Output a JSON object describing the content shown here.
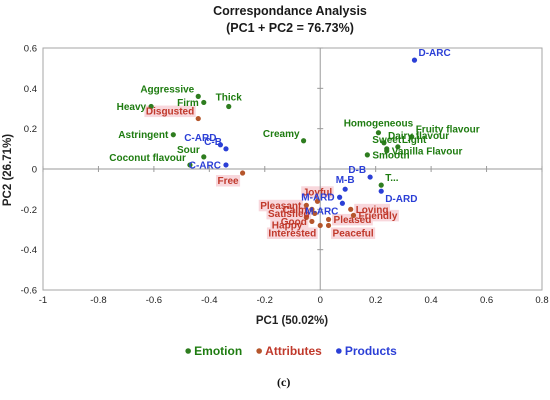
{
  "chart_data": {
    "type": "scatter",
    "title": "Correspondance Analysis",
    "subtitle": "(PC1 + PC2 = 76.73%)",
    "xlabel": "PC1 (50.02%)",
    "ylabel": "PC2 (26.71%)",
    "xlim": [
      -1,
      0.8
    ],
    "ylim": [
      -0.6,
      0.6
    ],
    "x_ticks": [
      -1,
      -0.8,
      -0.6,
      -0.4,
      -0.2,
      0,
      0.2,
      0.4,
      0.6,
      0.8
    ],
    "x_tick_labels": [
      "-1",
      "-0.8",
      "-0.6",
      "-0.4",
      "-0.2",
      "0",
      "0.2",
      "0.4",
      "0.6",
      "0.8"
    ],
    "y_ticks": [
      -0.6,
      -0.4,
      -0.2,
      0,
      0.2,
      0.4,
      0.6
    ],
    "y_tick_labels": [
      "-0.6",
      "-0.4",
      "-0.2",
      "0",
      "0.2",
      "0.4",
      "0.6"
    ],
    "grid": false,
    "legend_position": "bottom",
    "panel_label": "(c)",
    "colors": {
      "emotion": "#2e7d1f",
      "emotion_text": "#1e7c10",
      "attributes": "#b5562c",
      "attributes_text": "#c0392b",
      "products": "#2b3fd6",
      "highlight": "#f8d7dc",
      "axis": "#a6a6a6",
      "zero_line": "#9a9a9a"
    },
    "series": [
      {
        "name": "Emotion",
        "color": "#2e7d1f",
        "label_color": "#1e7c10",
        "points": [
          {
            "label": "Aggressive",
            "x": -0.44,
            "y": 0.36,
            "label_pos": "left-above"
          },
          {
            "label": "Firm",
            "x": -0.42,
            "y": 0.33,
            "label_pos": "left"
          },
          {
            "label": "Thick",
            "x": -0.33,
            "y": 0.31,
            "label_pos": "above"
          },
          {
            "label": "Heavy",
            "x": -0.61,
            "y": 0.31,
            "label_pos": "left"
          },
          {
            "label": "Astringent",
            "x": -0.53,
            "y": 0.17,
            "label_pos": "left"
          },
          {
            "label": "Creamy",
            "x": -0.06,
            "y": 0.14,
            "label_pos": "left-above"
          },
          {
            "label": "Sour",
            "x": -0.42,
            "y": 0.06,
            "label_pos": "left-above"
          },
          {
            "label": "Coconut flavour",
            "x": -0.47,
            "y": 0.02,
            "label_pos": "left-above"
          },
          {
            "label": "Homogeneous",
            "x": 0.21,
            "y": 0.18,
            "label_pos": "above"
          },
          {
            "label": "Fruity flavour",
            "x": 0.33,
            "y": 0.16,
            "label_pos": "right-above"
          },
          {
            "label": "Dairy flavour",
            "x": 0.23,
            "y": 0.13,
            "label_pos": "right-above"
          },
          {
            "label": "Sweet",
            "x": 0.24,
            "y": 0.1,
            "label_pos": "above"
          },
          {
            "label": "Light",
            "x": 0.28,
            "y": 0.11,
            "label_pos": "right-above"
          },
          {
            "label": "Vanilla Flavour",
            "x": 0.24,
            "y": 0.09,
            "label_pos": "right"
          },
          {
            "label": "Smooth",
            "x": 0.17,
            "y": 0.07,
            "label_pos": "right"
          },
          {
            "label": "T...",
            "x": 0.22,
            "y": -0.08,
            "label_pos": "right-above"
          }
        ]
      },
      {
        "name": "Attributes",
        "color": "#b5562c",
        "label_color": "#c0392b",
        "points": [
          {
            "label": "Disgusted",
            "x": -0.44,
            "y": 0.25,
            "label_pos": "left-above"
          },
          {
            "label": "Free",
            "x": -0.28,
            "y": -0.02,
            "label_pos": "left-below"
          },
          {
            "label": "Joyful",
            "x": -0.01,
            "y": -0.16,
            "label_pos": "above"
          },
          {
            "label": "Pleasant",
            "x": -0.05,
            "y": -0.18,
            "label_pos": "left"
          },
          {
            "label": "Calm",
            "x": -0.03,
            "y": -0.2,
            "label_pos": "left"
          },
          {
            "label": "Satisfied",
            "x": -0.02,
            "y": -0.22,
            "label_pos": "left"
          },
          {
            "label": "Happy",
            "x": -0.05,
            "y": -0.24,
            "label_pos": "left-below"
          },
          {
            "label": "Good",
            "x": -0.03,
            "y": -0.26,
            "label_pos": "left"
          },
          {
            "label": "Interested",
            "x": 0,
            "y": -0.28,
            "label_pos": "left-below"
          },
          {
            "label": "Pleased",
            "x": 0.03,
            "y": -0.25,
            "label_pos": "right"
          },
          {
            "label": "Loving",
            "x": 0.11,
            "y": -0.2,
            "label_pos": "right"
          },
          {
            "label": "Friendly",
            "x": 0.12,
            "y": -0.23,
            "label_pos": "right"
          },
          {
            "label": "Peaceful",
            "x": 0.03,
            "y": -0.28,
            "label_pos": "right-below"
          }
        ]
      },
      {
        "name": "Products",
        "color": "#2b3fd6",
        "label_color": "#2b3fd6",
        "points": [
          {
            "label": "D-ARC",
            "x": 0.34,
            "y": 0.54,
            "label_pos": "right-above"
          },
          {
            "label": "C-ARD",
            "x": -0.36,
            "y": 0.12,
            "label_pos": "left-above"
          },
          {
            "label": "C-B",
            "x": -0.34,
            "y": 0.1,
            "label_pos": "left-above"
          },
          {
            "label": "C-ARC",
            "x": -0.34,
            "y": 0.02,
            "label_pos": "left"
          },
          {
            "label": "D-B",
            "x": 0.18,
            "y": -0.04,
            "label_pos": "left-above"
          },
          {
            "label": "M-B",
            "x": 0.09,
            "y": -0.1,
            "label_pos": "above"
          },
          {
            "label": "M-ARD",
            "x": 0.07,
            "y": -0.14,
            "label_pos": "left"
          },
          {
            "label": "M-ARC",
            "x": 0.08,
            "y": -0.17,
            "label_pos": "left-below"
          },
          {
            "label": "D-ARD",
            "x": 0.22,
            "y": -0.11,
            "label_pos": "right-below"
          }
        ]
      }
    ]
  }
}
